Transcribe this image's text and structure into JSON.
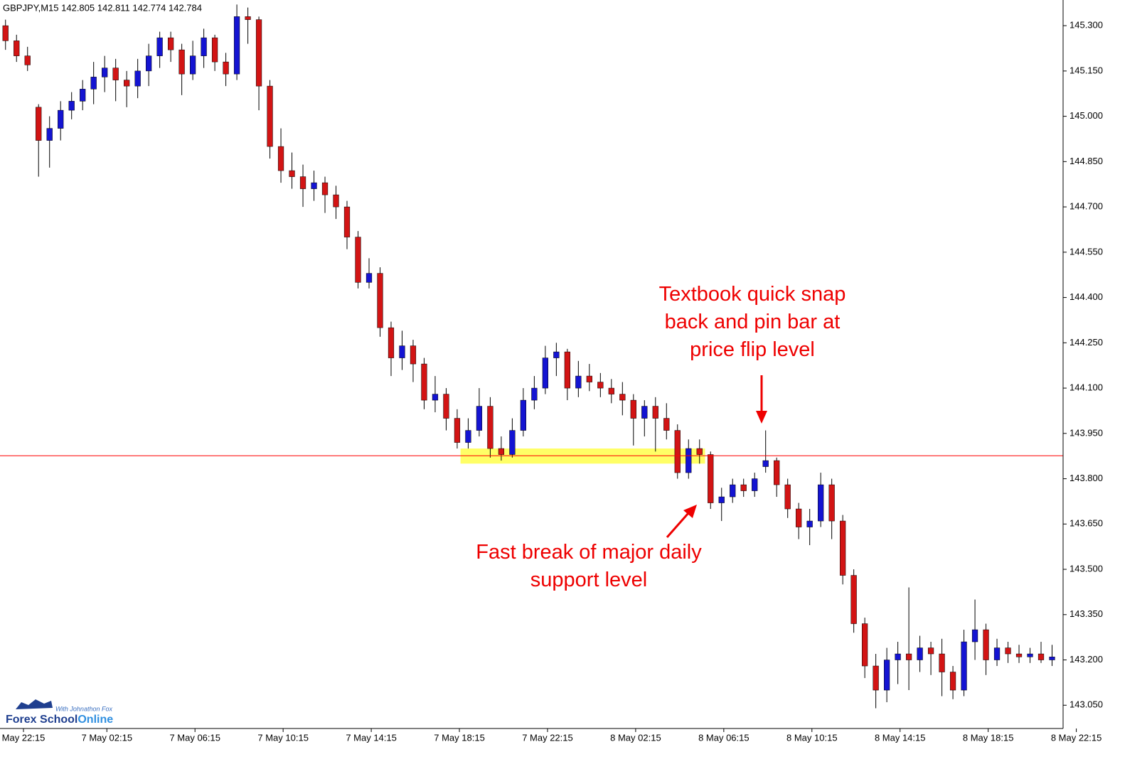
{
  "chart_data": {
    "type": "candlestick",
    "title": "GBPJPY,M15  142.805 142.811 142.774 142.784",
    "up_color": "#1414d2",
    "down_color": "#d21414",
    "wick_color": "#000000",
    "level": 143.876,
    "level_color": "#ff0000",
    "zone": {
      "from": 41.3,
      "to": 63.5,
      "low": 143.85,
      "high": 143.9,
      "color": "#ffff66"
    },
    "ylim": [
      142.973,
      145.385
    ],
    "xlim": [
      -0.5,
      96
    ],
    "yticks": [
      {
        "value": 145.3,
        "label": "145.300"
      },
      {
        "value": 145.15,
        "label": "145.150"
      },
      {
        "value": 145.0,
        "label": "145.000"
      },
      {
        "value": 144.85,
        "label": "144.850"
      },
      {
        "value": 144.7,
        "label": "144.700"
      },
      {
        "value": 144.55,
        "label": "144.550"
      },
      {
        "value": 144.4,
        "label": "144.400"
      },
      {
        "value": 144.25,
        "label": "144.250"
      },
      {
        "value": 144.1,
        "label": "144.100"
      },
      {
        "value": 143.95,
        "label": "143.950"
      },
      {
        "value": 143.8,
        "label": "143.800"
      },
      {
        "value": 143.65,
        "label": "143.650"
      },
      {
        "value": 143.5,
        "label": "143.500"
      },
      {
        "value": 143.35,
        "label": "143.350"
      },
      {
        "value": 143.2,
        "label": "143.200"
      },
      {
        "value": 143.05,
        "label": "143.050"
      }
    ],
    "xticks": [
      {
        "value": 1.63,
        "label": "May 22:15"
      },
      {
        "value": 9.2,
        "label": "7 May 02:15"
      },
      {
        "value": 17.2,
        "label": "7 May 06:15"
      },
      {
        "value": 25.2,
        "label": "7 May 10:15"
      },
      {
        "value": 33.2,
        "label": "7 May 14:15"
      },
      {
        "value": 41.2,
        "label": "7 May 18:15"
      },
      {
        "value": 49.2,
        "label": "7 May 22:15"
      },
      {
        "value": 57.2,
        "label": "8 May 02:15"
      },
      {
        "value": 65.2,
        "label": "8 May 06:15"
      },
      {
        "value": 73.2,
        "label": "8 May 10:15"
      },
      {
        "value": 81.2,
        "label": "8 May 14:15"
      },
      {
        "value": 89.2,
        "label": "8 May 18:15"
      },
      {
        "value": 97.2,
        "label": "8 May 22:15"
      }
    ],
    "candles": [
      [
        145.3,
        145.32,
        145.22,
        145.25
      ],
      [
        145.25,
        145.27,
        145.18,
        145.2
      ],
      [
        145.2,
        145.23,
        145.15,
        145.17
      ],
      [
        145.03,
        145.04,
        144.8,
        144.92
      ],
      [
        144.92,
        145.0,
        144.83,
        144.96
      ],
      [
        144.96,
        145.05,
        144.92,
        145.02
      ],
      [
        145.02,
        145.08,
        144.99,
        145.05
      ],
      [
        145.05,
        145.12,
        145.02,
        145.09
      ],
      [
        145.09,
        145.18,
        145.04,
        145.13
      ],
      [
        145.13,
        145.2,
        145.08,
        145.16
      ],
      [
        145.16,
        145.19,
        145.05,
        145.12
      ],
      [
        145.12,
        145.15,
        145.03,
        145.1
      ],
      [
        145.1,
        145.19,
        145.06,
        145.15
      ],
      [
        145.15,
        145.24,
        145.1,
        145.2
      ],
      [
        145.2,
        145.28,
        145.16,
        145.26
      ],
      [
        145.26,
        145.28,
        145.18,
        145.22
      ],
      [
        145.22,
        145.24,
        145.07,
        145.14
      ],
      [
        145.14,
        145.25,
        145.12,
        145.2
      ],
      [
        145.2,
        145.29,
        145.16,
        145.26
      ],
      [
        145.26,
        145.27,
        145.15,
        145.18
      ],
      [
        145.18,
        145.21,
        145.1,
        145.14
      ],
      [
        145.14,
        145.37,
        145.12,
        145.33
      ],
      [
        145.33,
        145.36,
        145.24,
        145.32
      ],
      [
        145.32,
        145.33,
        145.02,
        145.1
      ],
      [
        145.1,
        145.12,
        144.86,
        144.9
      ],
      [
        144.9,
        144.96,
        144.78,
        144.82
      ],
      [
        144.82,
        144.88,
        144.76,
        144.8
      ],
      [
        144.8,
        144.84,
        144.7,
        144.76
      ],
      [
        144.76,
        144.82,
        144.72,
        144.78
      ],
      [
        144.78,
        144.8,
        144.68,
        144.74
      ],
      [
        144.74,
        144.77,
        144.66,
        144.7
      ],
      [
        144.7,
        144.72,
        144.56,
        144.6
      ],
      [
        144.6,
        144.62,
        144.43,
        144.45
      ],
      [
        144.45,
        144.53,
        144.43,
        144.48
      ],
      [
        144.48,
        144.5,
        144.27,
        144.3
      ],
      [
        144.3,
        144.32,
        144.14,
        144.2
      ],
      [
        144.2,
        144.29,
        144.16,
        144.24
      ],
      [
        144.24,
        144.26,
        144.12,
        144.18
      ],
      [
        144.18,
        144.2,
        144.03,
        144.06
      ],
      [
        144.06,
        144.14,
        144.02,
        144.08
      ],
      [
        144.08,
        144.1,
        143.96,
        144.0
      ],
      [
        144.0,
        144.03,
        143.9,
        143.92
      ],
      [
        143.92,
        144.0,
        143.9,
        143.96
      ],
      [
        143.96,
        144.1,
        143.94,
        144.04
      ],
      [
        144.04,
        144.07,
        143.87,
        143.9
      ],
      [
        143.9,
        143.94,
        143.86,
        143.88
      ],
      [
        143.88,
        144.0,
        143.87,
        143.96
      ],
      [
        143.96,
        144.1,
        143.94,
        144.06
      ],
      [
        144.06,
        144.14,
        144.03,
        144.1
      ],
      [
        144.1,
        144.24,
        144.08,
        144.2
      ],
      [
        144.2,
        144.25,
        144.14,
        144.22
      ],
      [
        144.22,
        144.23,
        144.06,
        144.1
      ],
      [
        144.1,
        144.19,
        144.07,
        144.14
      ],
      [
        144.14,
        144.18,
        144.09,
        144.12
      ],
      [
        144.12,
        144.15,
        144.07,
        144.1
      ],
      [
        144.1,
        144.13,
        144.05,
        144.08
      ],
      [
        144.08,
        144.12,
        144.01,
        144.06
      ],
      [
        144.06,
        144.08,
        143.91,
        144.0
      ],
      [
        144.0,
        144.06,
        143.94,
        144.04
      ],
      [
        144.04,
        144.07,
        143.89,
        144.0
      ],
      [
        144.0,
        144.05,
        143.93,
        143.96
      ],
      [
        143.96,
        143.98,
        143.8,
        143.82
      ],
      [
        143.82,
        143.93,
        143.8,
        143.9
      ],
      [
        143.9,
        143.93,
        143.85,
        143.88
      ],
      [
        143.88,
        143.89,
        143.7,
        143.72
      ],
      [
        143.72,
        143.77,
        143.66,
        143.74
      ],
      [
        143.74,
        143.8,
        143.72,
        143.78
      ],
      [
        143.78,
        143.8,
        143.74,
        143.76
      ],
      [
        143.76,
        143.82,
        143.74,
        143.8
      ],
      [
        143.84,
        143.96,
        143.82,
        143.86
      ],
      [
        143.86,
        143.87,
        143.74,
        143.78
      ],
      [
        143.78,
        143.8,
        143.67,
        143.7
      ],
      [
        143.7,
        143.72,
        143.6,
        143.64
      ],
      [
        143.64,
        143.7,
        143.58,
        143.66
      ],
      [
        143.66,
        143.82,
        143.64,
        143.78
      ],
      [
        143.78,
        143.8,
        143.6,
        143.66
      ],
      [
        143.66,
        143.68,
        143.45,
        143.48
      ],
      [
        143.48,
        143.5,
        143.29,
        143.32
      ],
      [
        143.32,
        143.34,
        143.14,
        143.18
      ],
      [
        143.18,
        143.22,
        143.04,
        143.1
      ],
      [
        143.1,
        143.24,
        143.06,
        143.2
      ],
      [
        143.2,
        143.26,
        143.12,
        143.22
      ],
      [
        143.22,
        143.44,
        143.1,
        143.2
      ],
      [
        143.2,
        143.28,
        143.16,
        143.24
      ],
      [
        143.24,
        143.26,
        143.15,
        143.22
      ],
      [
        143.22,
        143.27,
        143.08,
        143.16
      ],
      [
        143.16,
        143.18,
        143.07,
        143.1
      ],
      [
        143.1,
        143.3,
        143.08,
        143.26
      ],
      [
        143.26,
        143.4,
        143.2,
        143.3
      ],
      [
        143.3,
        143.32,
        143.15,
        143.2
      ],
      [
        143.2,
        143.27,
        143.18,
        143.24
      ],
      [
        143.24,
        143.26,
        143.19,
        143.22
      ],
      [
        143.22,
        143.25,
        143.19,
        143.21
      ],
      [
        143.21,
        143.24,
        143.19,
        143.22
      ],
      [
        143.22,
        143.26,
        143.19,
        143.2
      ],
      [
        143.2,
        143.25,
        143.18,
        143.21
      ]
    ],
    "annotations": [
      {
        "lines": [
          "Textbook quick snap",
          "back and pin bar at",
          "price flip level"
        ],
        "color": "#ee0000"
      },
      {
        "lines": [
          "Fast break of major daily",
          "support level"
        ],
        "color": "#ee0000"
      }
    ],
    "logo": {
      "name": "Forex School",
      "name_accent": "Online",
      "tagline": "With Johnathon Fox"
    }
  }
}
